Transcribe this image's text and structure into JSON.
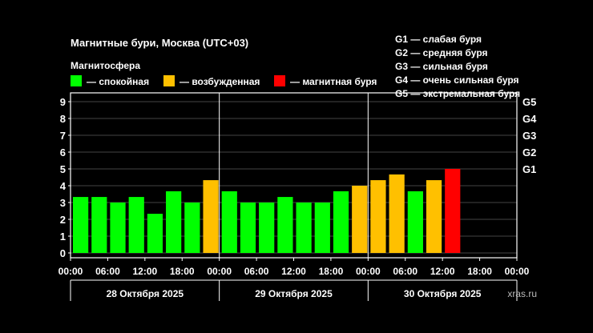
{
  "chart_data": {
    "type": "bar",
    "title": "Магнитные бури, Москва (UTC+03)",
    "legend_title": "Магнитосфера",
    "legend": [
      {
        "key": "quiet",
        "label": "— спокойная",
        "color": "#00ff00"
      },
      {
        "key": "excited",
        "label": "— возбужденная",
        "color": "#ffc000"
      },
      {
        "key": "storm",
        "label": "— магнитная буря",
        "color": "#ff0000"
      }
    ],
    "storm_levels": [
      "G1 — слабая буря",
      "G2 — средняя буря",
      "G3 — сильная буря",
      "G4 — очень сильная буря",
      "G5 — экстремальная буря"
    ],
    "right_axis_labels": [
      {
        "value": 5,
        "label": "G1"
      },
      {
        "value": 6,
        "label": "G2"
      },
      {
        "value": 7,
        "label": "G3"
      },
      {
        "value": 8,
        "label": "G4"
      },
      {
        "value": 9,
        "label": "G5"
      }
    ],
    "ylim": [
      0,
      9
    ],
    "yticks": [
      0,
      1,
      2,
      3,
      4,
      5,
      6,
      7,
      8,
      9
    ],
    "x_tick_labels": [
      "00:00",
      "06:00",
      "12:00",
      "18:00",
      "00:00",
      "06:00",
      "12:00",
      "18:00",
      "00:00",
      "06:00",
      "12:00",
      "18:00",
      "00:00"
    ],
    "days": [
      "28 Октября 2025",
      "29 Октября 2025",
      "30 Октября 2025"
    ],
    "slots": 24,
    "values": [
      3.33,
      3.33,
      3.0,
      3.33,
      2.33,
      3.67,
      3.0,
      4.33,
      3.67,
      3.0,
      3.0,
      3.33,
      3.0,
      3.0,
      3.67,
      4.0,
      4.33,
      4.67,
      3.67,
      4.33,
      5.0
    ],
    "levels": [
      "quiet",
      "quiet",
      "quiet",
      "quiet",
      "quiet",
      "quiet",
      "quiet",
      "excited",
      "quiet",
      "quiet",
      "quiet",
      "quiet",
      "quiet",
      "quiet",
      "quiet",
      "excited",
      "excited",
      "excited",
      "quiet",
      "excited",
      "storm"
    ]
  },
  "watermark": "xras.ru"
}
